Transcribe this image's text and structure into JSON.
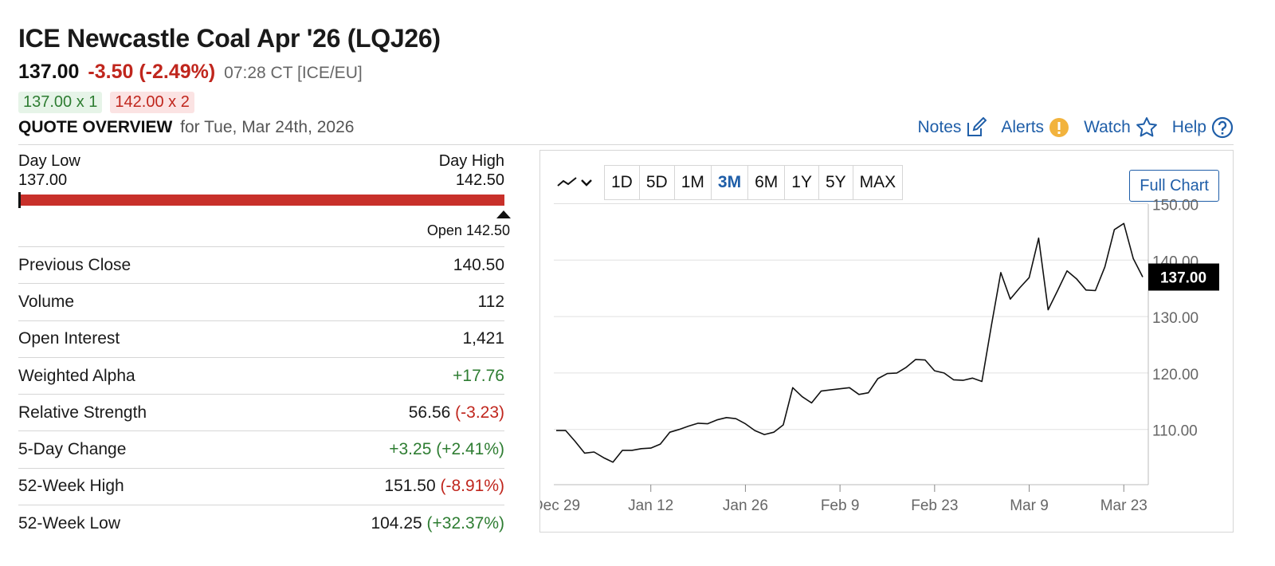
{
  "header": {
    "title": "ICE Newcastle Coal Apr '26 (LQJ26)",
    "last": "137.00",
    "change": "-3.50 (-2.49%)",
    "time": "07:28 CT [ICE/EU]",
    "bid": "137.00 x 1",
    "ask": "142.00 x 2",
    "overview_label": "QUOTE OVERVIEW",
    "overview_date": "for Tue, Mar 24th, 2026"
  },
  "toolbar": {
    "notes": "Notes",
    "alerts": "Alerts",
    "watch": "Watch",
    "help": "Help"
  },
  "range": {
    "low_label": "Day Low",
    "low_value": "137.00",
    "high_label": "Day High",
    "high_value": "142.50",
    "open_label": "Open 142.50"
  },
  "stats": [
    {
      "label": "Previous Close",
      "value": "140.50",
      "delta": "",
      "tone": ""
    },
    {
      "label": "Volume",
      "value": "112",
      "delta": "",
      "tone": ""
    },
    {
      "label": "Open Interest",
      "value": "1,421",
      "delta": "",
      "tone": ""
    },
    {
      "label": "Weighted Alpha",
      "value": "+17.76",
      "delta": "",
      "tone": "up"
    },
    {
      "label": "Relative Strength",
      "value": "56.56",
      "delta": "(-3.23)",
      "tone": "down"
    },
    {
      "label": "5-Day Change",
      "value": "+3.25 (+2.41%)",
      "delta": "",
      "tone": "up"
    },
    {
      "label": "52-Week High",
      "value": "151.50",
      "delta": "(-8.91%)",
      "tone": "down"
    },
    {
      "label": "52-Week Low",
      "value": "104.25",
      "delta": "(+32.37%)",
      "tone": "up"
    }
  ],
  "chart_controls": {
    "periods": [
      "1D",
      "5D",
      "1M",
      "3M",
      "6M",
      "1Y",
      "5Y",
      "MAX"
    ],
    "active": "3M",
    "full_chart": "Full Chart"
  },
  "chart_data": {
    "type": "line",
    "ylim": [
      100,
      150
    ],
    "yticks": [
      150,
      140,
      130,
      120,
      110
    ],
    "ytick_labels": [
      "150.00",
      "140.00",
      "130.00",
      "120.00",
      "110.00"
    ],
    "xtick_labels": [
      "Dec 29",
      "Jan 12",
      "Jan 26",
      "Feb 9",
      "Feb 23",
      "Mar 9",
      "Mar 23"
    ],
    "xtick_index": [
      0,
      10,
      20,
      30,
      40,
      50,
      60
    ],
    "last_label": "137.00",
    "values": [
      109.8,
      109.8,
      107.9,
      105.8,
      106.0,
      105.0,
      104.2,
      106.3,
      106.3,
      106.6,
      106.7,
      107.4,
      109.5,
      110.0,
      110.6,
      111.1,
      111.0,
      111.7,
      112.1,
      111.9,
      111.0,
      109.8,
      109.1,
      109.5,
      110.8,
      117.4,
      115.8,
      114.7,
      116.8,
      117.0,
      117.2,
      117.4,
      116.2,
      116.5,
      119.0,
      119.9,
      120.0,
      121.0,
      122.4,
      122.3,
      120.4,
      120.0,
      118.8,
      118.7,
      119.1,
      118.5,
      128.4,
      137.8,
      133.1,
      135.1,
      136.9,
      143.9,
      131.2,
      134.6,
      138.1,
      136.7,
      134.7,
      134.6,
      138.8,
      145.4,
      146.5,
      140.3,
      137.0
    ]
  }
}
